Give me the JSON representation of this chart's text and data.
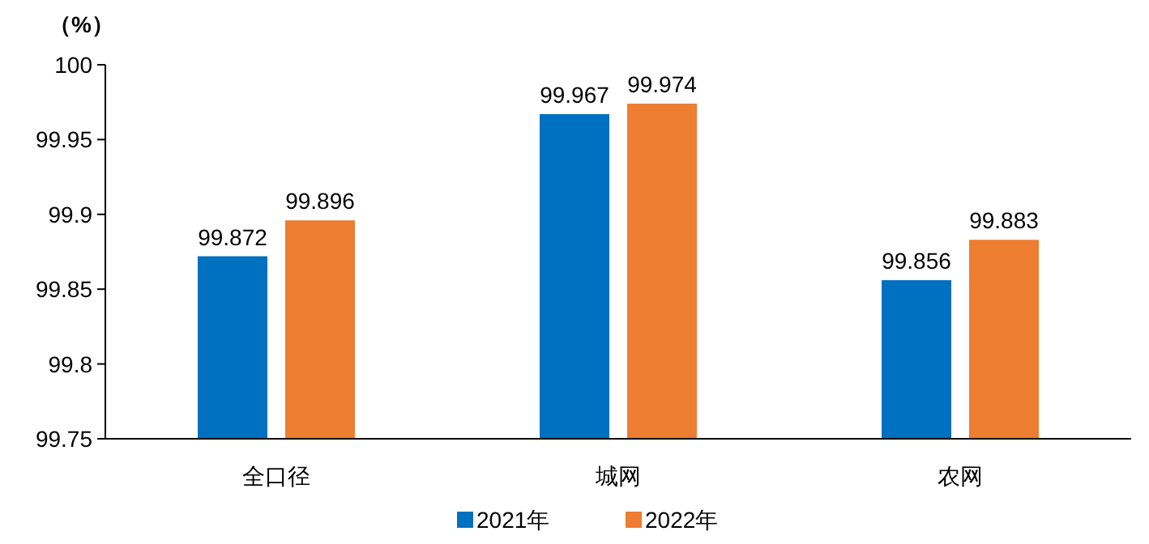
{
  "chart_data": {
    "type": "bar",
    "ylabel": "（%）",
    "categories": [
      "全口径",
      "城网",
      "农网"
    ],
    "series": [
      {
        "name": "2021年",
        "color": "#0070c0",
        "values": [
          99.872,
          99.967,
          99.856
        ]
      },
      {
        "name": "2022年",
        "color": "#ed7d31",
        "values": [
          99.896,
          99.974,
          99.883
        ]
      }
    ],
    "ylim": [
      99.75,
      100
    ],
    "yticks": [
      99.75,
      99.8,
      99.85,
      99.9,
      99.95,
      100
    ],
    "data_labels": true,
    "legend": "bottom"
  }
}
